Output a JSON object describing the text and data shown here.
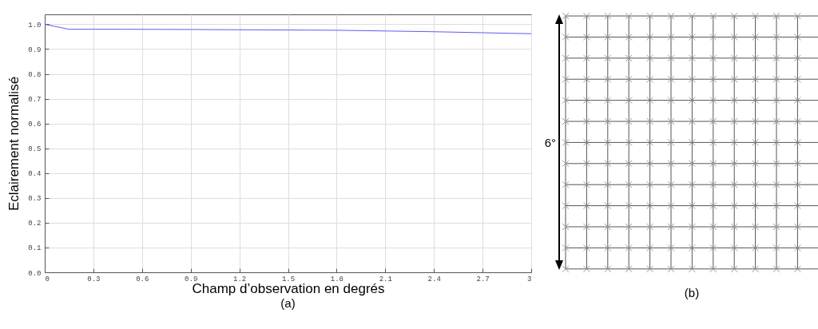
{
  "chart_data": [
    {
      "type": "line",
      "xlabel": "Champ d’observation en degrés",
      "ylabel": "Eclairement normalisé",
      "annotations": [
        "(a)"
      ],
      "series": [
        {
          "color": "#5b5bf0",
          "x": [
            0,
            0.15,
            0.5,
            0.9,
            1.2,
            1.5,
            1.8,
            2.1,
            2.4,
            2.7,
            3
          ],
          "values": [
            1.0,
            0.98,
            0.98,
            0.979,
            0.978,
            0.977,
            0.976,
            0.973,
            0.97,
            0.966,
            0.962
          ]
        }
      ],
      "xlim": [
        0,
        3
      ],
      "xticks": [
        0,
        0.3,
        0.6,
        0.9,
        1.2,
        1.5,
        1.8,
        2.1,
        2.4,
        2.7,
        3
      ],
      "ylim": [
        0,
        1.04
      ],
      "yticks": [
        {
          "value": 0,
          "label": "0.0"
        },
        0.1,
        0.2,
        0.3,
        0.4,
        0.5,
        0.6,
        0.7,
        0.8,
        0.9,
        {
          "value": 1,
          "label": "1.0"
        }
      ],
      "grid": true,
      "legend": false,
      "line_style": "solid",
      "marker": "none"
    },
    {
      "type": "other",
      "annotations": [
        "6°",
        "(b)"
      ]
    }
  ]
}
